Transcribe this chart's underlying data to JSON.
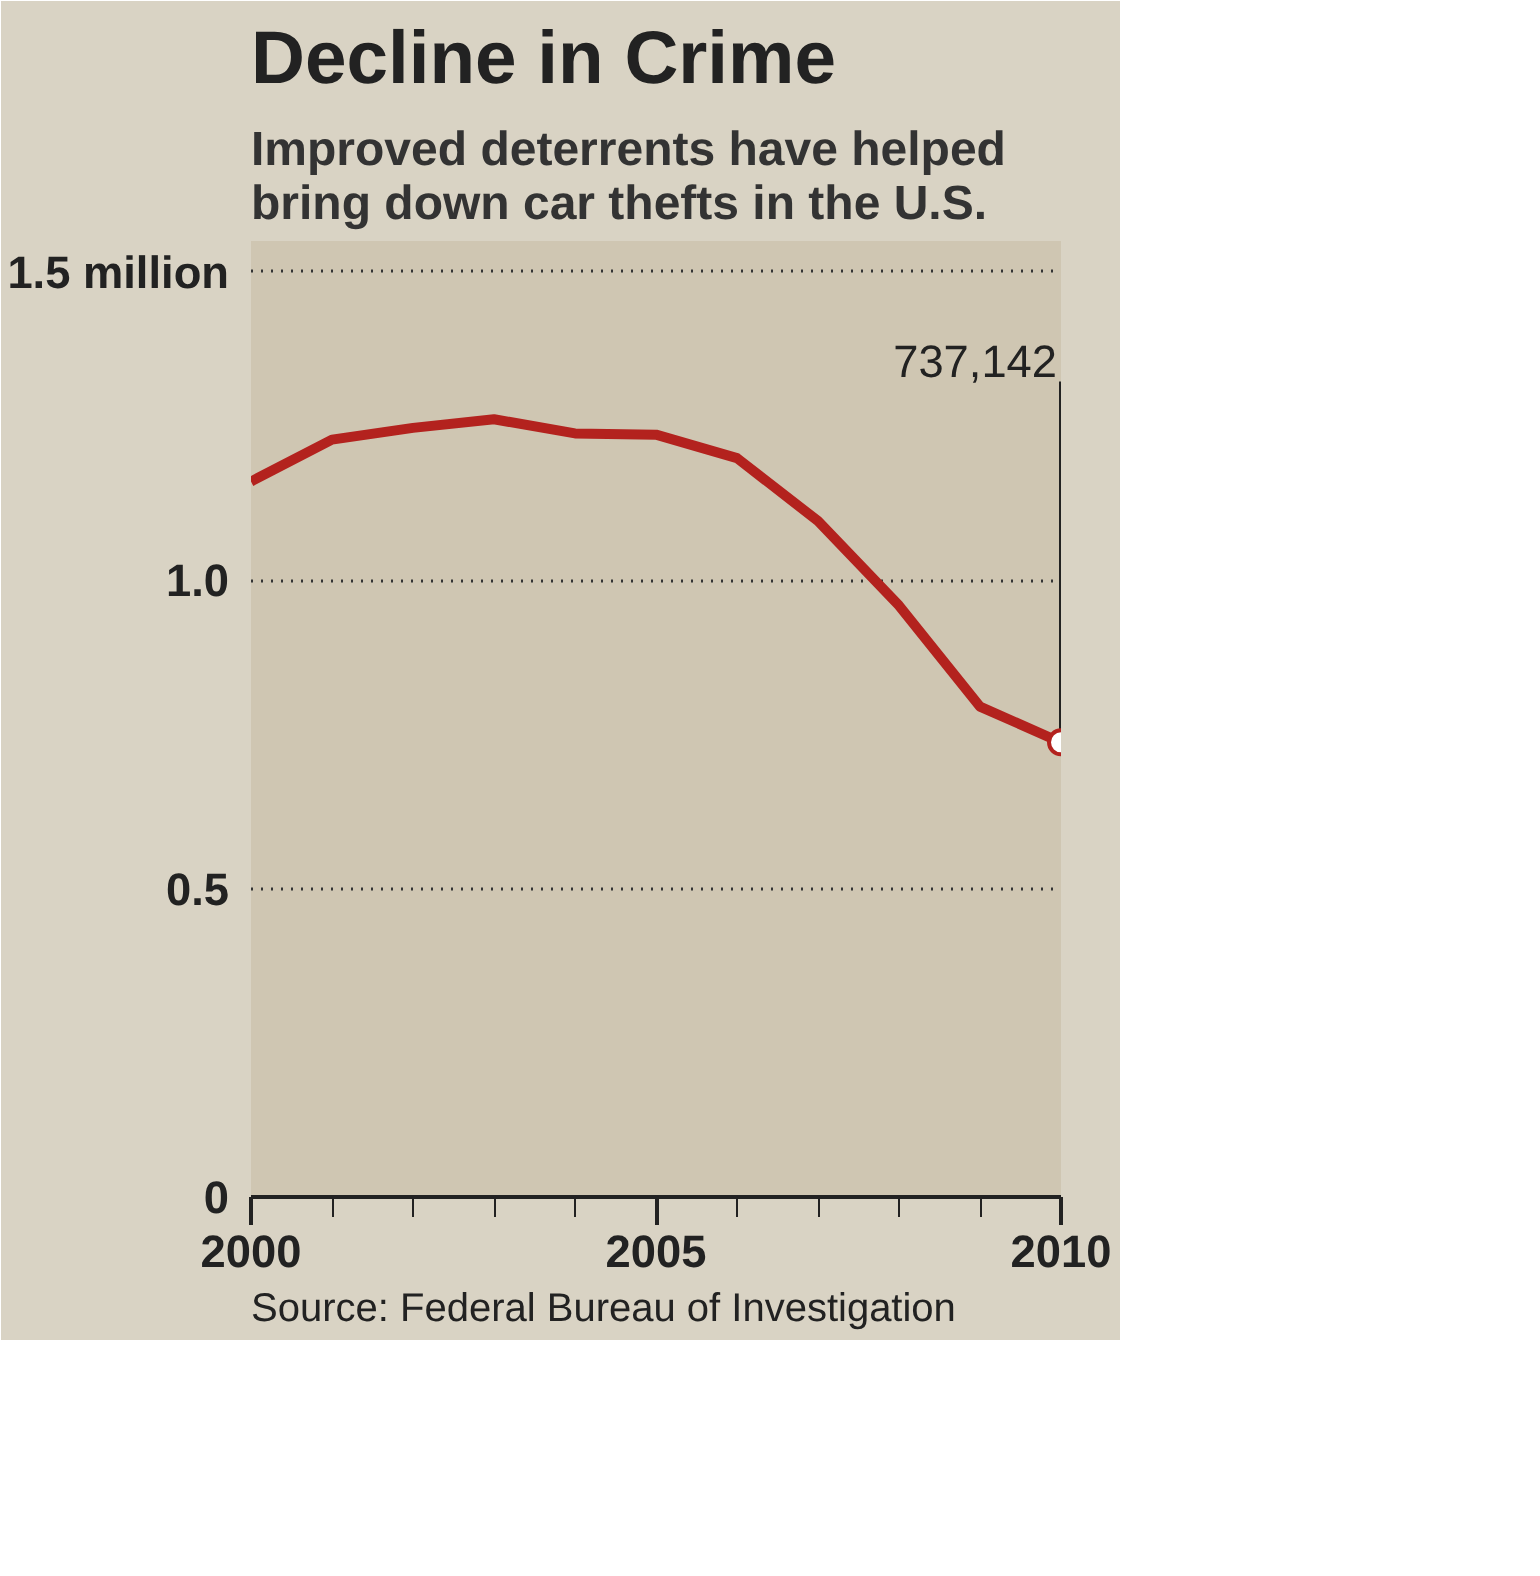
{
  "chart_data": {
    "type": "line",
    "title": "Decline in Crime",
    "subtitle": "Improved deterrents have helped\nbring down car thefts in the U.S.",
    "x": [
      2000,
      2001,
      2002,
      2003,
      2004,
      2005,
      2006,
      2007,
      2008,
      2009,
      2010
    ],
    "series": [
      {
        "color": "#b3221e",
        "values": [
          1.16,
          1.228,
          1.247,
          1.261,
          1.238,
          1.236,
          1.198,
          1.096,
          0.959,
          0.795,
          0.737142
        ]
      }
    ],
    "xlim": [
      2000,
      2010
    ],
    "ylim": [
      0,
      1.55
    ],
    "xticks": [
      2000,
      {
        "value": 2001,
        "label": null
      },
      {
        "value": 2002,
        "label": null
      },
      {
        "value": 2003,
        "label": null
      },
      {
        "value": 2004,
        "label": null
      },
      2005,
      {
        "value": 2006,
        "label": null
      },
      {
        "value": 2007,
        "label": null
      },
      {
        "value": 2008,
        "label": null
      },
      {
        "value": 2009,
        "label": null
      },
      2010
    ],
    "yticks": [
      0,
      0.5,
      {
        "value": 1.0,
        "label": "1.0"
      },
      {
        "value": 1.5,
        "label": "1.5 million"
      }
    ],
    "grid": "y",
    "line_style": "solid",
    "annotations": [
      {
        "text": "737,142",
        "x": 2010,
        "y": 0.737142
      },
      "Source: Federal Bureau of Investigation"
    ]
  }
}
